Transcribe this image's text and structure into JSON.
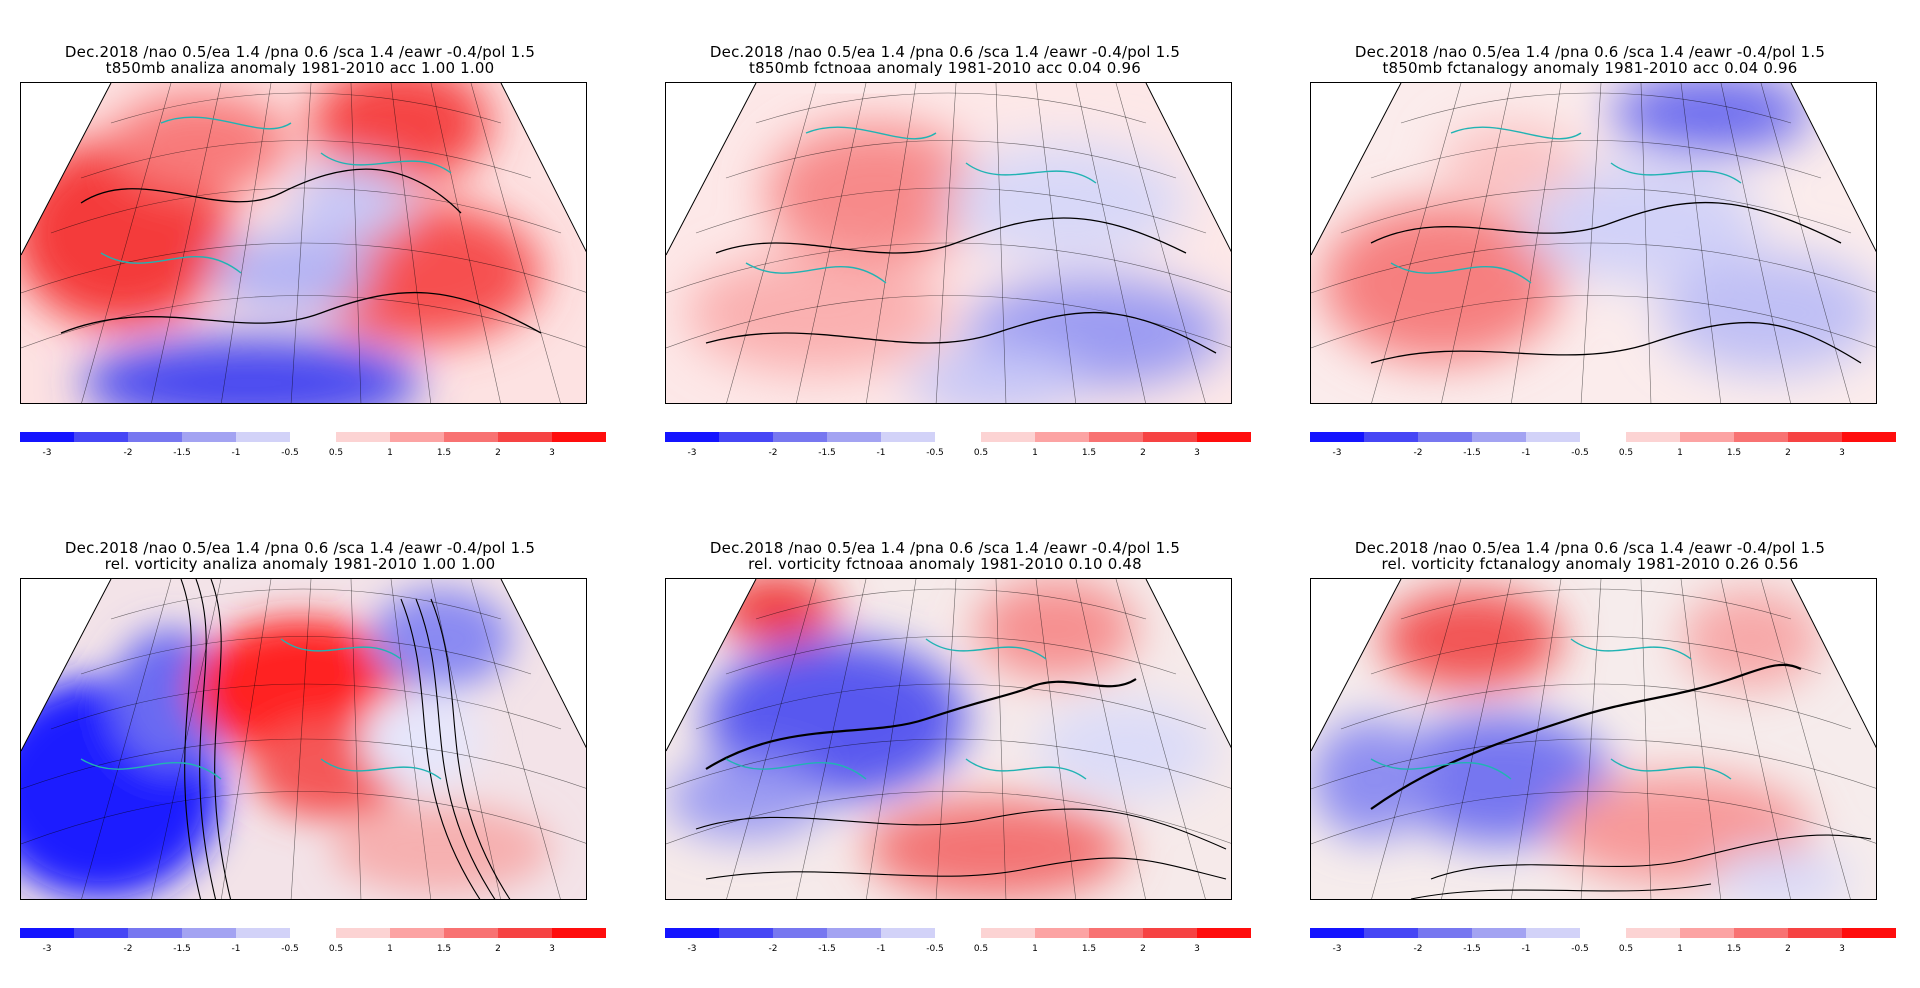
{
  "colors": {
    "negative": [
      "#1414ff",
      "#4646f5",
      "#7777f0",
      "#a3a3f2",
      "#d2d2f8"
    ],
    "positive": [
      "#fcd3d3",
      "#fca3a3",
      "#f87272",
      "#f64343",
      "#ff0d0d"
    ],
    "coast": "#21b3b3"
  },
  "colorbar": {
    "neg_labels": [
      "-3",
      "-2",
      "-1.5",
      "-1",
      "-0.5"
    ],
    "pos_labels": [
      "0.5",
      "1",
      "1.5",
      "2",
      "3"
    ]
  },
  "panels": [
    {
      "line1": "Dec.2018 /nao  0.5/ea 1.4 /pna 0.6 /sca 1.4 /eawr -0.4/pol  1.5",
      "line2": "t850mb analiza anomaly 1981-2010 acc  1.00  1.00"
    },
    {
      "line1": "Dec.2018 /nao  0.5/ea 1.4 /pna 0.6 /sca 1.4 /eawr -0.4/pol  1.5",
      "line2": "t850mb fctnoaa anomaly 1981-2010 acc  0.04  0.96"
    },
    {
      "line1": "Dec.2018 /nao  0.5/ea 1.4 /pna 0.6 /sca 1.4 /eawr -0.4/pol  1.5",
      "line2": "t850mb fctanalogy anomaly 1981-2010 acc  0.04  0.96"
    },
    {
      "line1": "Dec.2018   /nao  0.5/ea 1.4 /pna 0.6 /sca 1.4 /eawr -0.4/pol  1.5",
      "line2": "rel. vorticity analiza anomaly 1981-2010  1.00  1.00"
    },
    {
      "line1": "Dec.2018   /nao  0.5/ea 1.4 /pna 0.6 /sca 1.4 /eawr -0.4/pol  1.5",
      "line2": "rel. vorticity fctnoaa anomaly 1981-2010  0.10  0.48"
    },
    {
      "line1": "Dec.2018   /nao  0.5/ea 1.4 /pna 0.6 /sca 1.4 /eawr -0.4/pol  1.5",
      "line2": "rel. vorticity fctanalogy anomaly 1981-2010  0.26  0.56"
    }
  ]
}
